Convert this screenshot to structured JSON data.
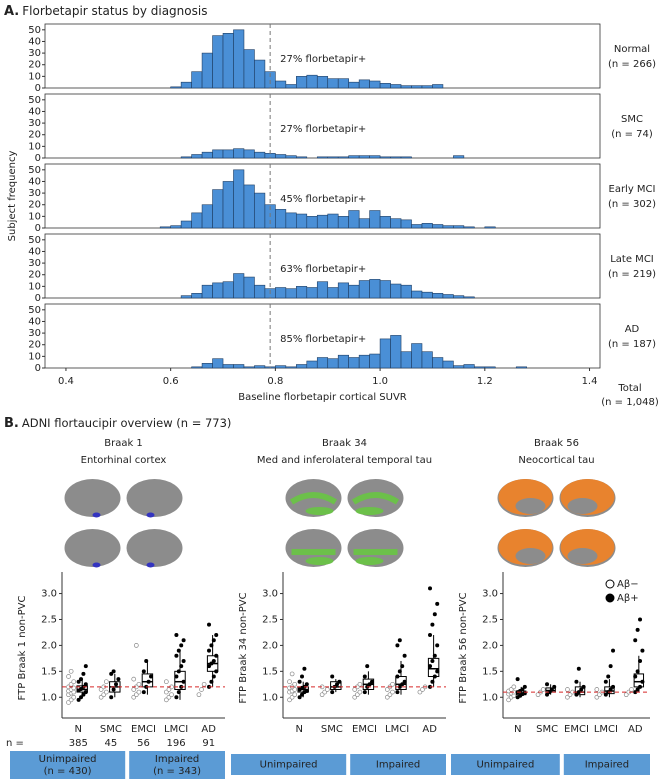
{
  "chart_data": [
    {
      "type": "histogram",
      "panel_letter": "A.",
      "title": "Florbetapir status by diagnosis",
      "xlabel": "Baseline florbetapir cortical SUVR",
      "ylabel": "Subject frequency",
      "xlim": [
        0.36,
        1.42
      ],
      "xticks": [
        0.4,
        0.6,
        0.8,
        {
          "value": 1,
          "label": "1.0"
        },
        1.2,
        1.4
      ],
      "ylim": [
        0,
        55
      ],
      "yticks": [
        0,
        10,
        20,
        30,
        40,
        50
      ],
      "threshold": 0.79,
      "color": "#4a8fd6",
      "bins": [
        0.58,
        0.6,
        0.62,
        0.64,
        0.66,
        0.68,
        0.7,
        0.72,
        0.74,
        0.76,
        0.78,
        0.8,
        0.82,
        0.84,
        0.86,
        0.88,
        0.9,
        0.92,
        0.94,
        0.96,
        0.98,
        1,
        1.02,
        1.04,
        1.06,
        1.08,
        1.1,
        1.12,
        1.14,
        1.16,
        1.18,
        1.2,
        1.22,
        1.24,
        1.26,
        1.28
      ],
      "panels": [
        {
          "name": "Normal",
          "n": "(n = 266)",
          "annotation": "27% florbetapir+",
          "values": [
            0,
            1,
            5,
            14,
            30,
            45,
            47,
            50,
            33,
            24,
            14,
            6,
            3,
            10,
            11,
            10,
            8,
            8,
            5,
            7,
            6,
            4,
            3,
            2,
            2,
            2,
            3,
            0,
            0,
            0,
            0,
            0,
            0,
            0,
            0
          ]
        },
        {
          "name": "SMC",
          "n": "(n = 74)",
          "annotation": "27% florbetapir+",
          "values": [
            0,
            0,
            1,
            3,
            5,
            7,
            7,
            8,
            7,
            5,
            4,
            3,
            2,
            1,
            0,
            1,
            1,
            1,
            2,
            2,
            2,
            1,
            1,
            1,
            0,
            0,
            0,
            0,
            2,
            0,
            0,
            0,
            0,
            0,
            0
          ]
        },
        {
          "name": "Early MCI",
          "n": "(n = 302)",
          "annotation": "45% florbetapir+",
          "values": [
            1,
            2,
            6,
            13,
            20,
            33,
            40,
            50,
            37,
            30,
            20,
            16,
            13,
            12,
            10,
            11,
            12,
            10,
            15,
            8,
            15,
            10,
            8,
            7,
            3,
            4,
            3,
            2,
            2,
            1,
            0,
            1,
            0,
            0,
            0
          ]
        },
        {
          "name": "Late MCI",
          "n": "(n = 219)",
          "annotation": "63% florbetapir+",
          "values": [
            0,
            0,
            2,
            4,
            11,
            13,
            14,
            21,
            18,
            11,
            8,
            9,
            8,
            10,
            9,
            14,
            9,
            13,
            11,
            15,
            16,
            15,
            12,
            11,
            6,
            5,
            4,
            3,
            2,
            1,
            0,
            0,
            0,
            0,
            0
          ]
        },
        {
          "name": "AD",
          "n": "(n = 187)",
          "annotation": "85% florbetapir+",
          "values": [
            0,
            0,
            0,
            1,
            4,
            8,
            3,
            3,
            1,
            2,
            1,
            2,
            1,
            3,
            6,
            9,
            8,
            11,
            9,
            11,
            12,
            25,
            28,
            14,
            21,
            14,
            9,
            6,
            2,
            3,
            1,
            1,
            0,
            0,
            1
          ]
        }
      ],
      "total_label": "Total",
      "total_n": "(n = 1,048)"
    },
    {
      "type": "swarm",
      "panel_letter": "B.",
      "panel_title": "ADNI flortaucipir overview (n = 773)",
      "title": "Braak 1",
      "subtitle": "Entorhinal cortex",
      "ylabel": "FTP Braak 1 non-PVC",
      "region_color": "#3434c0",
      "ylim": [
        0.6,
        3.3
      ],
      "yticks": [
        {
          "value": 1,
          "label": "1.0"
        },
        1.5,
        {
          "value": 2,
          "label": "2.0"
        },
        2.5,
        {
          "value": 3,
          "label": "3.0"
        }
      ],
      "threshold": 1.2,
      "categories": [
        "N",
        "SMC",
        "EMCI",
        "LMCI",
        "AD"
      ],
      "negative": [
        [
          0.9,
          0.95,
          1.0,
          1.05,
          1.08,
          1.1,
          1.12,
          1.15,
          1.18,
          1.2,
          1.25,
          1.3,
          1.4,
          1.5
        ],
        [
          1.0,
          1.05,
          1.1,
          1.15,
          1.2,
          1.3
        ],
        [
          1.0,
          1.05,
          1.1,
          1.15,
          1.2,
          1.25,
          1.35,
          2.0
        ],
        [
          0.95,
          1.0,
          1.05,
          1.1,
          1.15,
          1.2,
          1.3
        ],
        [
          1.05,
          1.15,
          1.25
        ]
      ],
      "positive": [
        [
          0.95,
          1.0,
          1.05,
          1.1,
          1.13,
          1.16,
          1.2,
          1.25,
          1.3,
          1.35,
          1.45,
          1.6
        ],
        [
          1.0,
          1.15,
          1.25,
          1.35,
          1.45,
          1.5
        ],
        [
          1.1,
          1.2,
          1.3,
          1.4,
          1.5,
          1.7
        ],
        [
          1.0,
          1.1,
          1.2,
          1.3,
          1.4,
          1.5,
          1.6,
          1.7,
          1.8,
          1.9,
          2.0,
          2.1,
          2.2
        ],
        [
          1.2,
          1.3,
          1.4,
          1.5,
          1.6,
          1.65,
          1.7,
          1.8,
          1.9,
          2.0,
          2.1,
          2.2,
          2.4
        ]
      ],
      "boxes": [
        [
          1.0,
          1.1,
          1.15,
          1.22,
          1.35
        ],
        [
          1.0,
          1.1,
          1.2,
          1.3,
          1.45
        ],
        [
          1.05,
          1.2,
          1.3,
          1.45,
          1.7
        ],
        [
          0.95,
          1.15,
          1.3,
          1.5,
          1.9
        ],
        [
          1.2,
          1.5,
          1.65,
          1.8,
          2.2
        ]
      ],
      "n_label": "n =",
      "counts": [
        385,
        45,
        56,
        196,
        91
      ],
      "group_color": "#5b9bd5",
      "groups": [
        {
          "label": "Unimpaired",
          "sublabel": "(n = 430)"
        },
        {
          "label": "Impaired",
          "sublabel": "(n = 343)"
        }
      ]
    },
    {
      "type": "swarm",
      "title": "Braak 34",
      "subtitle": "Med and inferolateral temporal tau",
      "ylabel": "FTP Braak 34 non-PVC",
      "region_color": "#6cc04a",
      "ylim": [
        0.6,
        3.3
      ],
      "yticks": [
        {
          "value": 1,
          "label": "1.0"
        },
        1.5,
        {
          "value": 2,
          "label": "2.0"
        },
        2.5,
        {
          "value": 3,
          "label": "3.0"
        }
      ],
      "threshold": 1.2,
      "categories": [
        "N",
        "SMC",
        "EMCI",
        "LMCI",
        "AD"
      ],
      "negative": [
        [
          0.95,
          1.0,
          1.05,
          1.1,
          1.12,
          1.15,
          1.18,
          1.2,
          1.25,
          1.3,
          1.45
        ],
        [
          1.05,
          1.1,
          1.15,
          1.2
        ],
        [
          1.0,
          1.05,
          1.1,
          1.15,
          1.2,
          1.25
        ],
        [
          1.0,
          1.05,
          1.1,
          1.15,
          1.2,
          1.25
        ],
        [
          1.1,
          1.15,
          1.2
        ]
      ],
      "positive": [
        [
          1.0,
          1.05,
          1.1,
          1.12,
          1.15,
          1.18,
          1.2,
          1.25,
          1.3,
          1.4,
          1.55
        ],
        [
          1.1,
          1.2,
          1.25,
          1.3,
          1.4
        ],
        [
          1.1,
          1.2,
          1.25,
          1.3,
          1.4,
          1.6
        ],
        [
          1.1,
          1.2,
          1.25,
          1.3,
          1.4,
          1.5,
          1.6,
          1.8,
          2.0,
          2.1
        ],
        [
          1.2,
          1.3,
          1.4,
          1.5,
          1.6,
          1.7,
          1.8,
          2.0,
          2.2,
          2.4,
          2.6,
          2.8,
          3.1
        ]
      ],
      "boxes": [
        [
          1.0,
          1.1,
          1.15,
          1.2,
          1.3
        ],
        [
          1.1,
          1.15,
          1.2,
          1.3,
          1.35
        ],
        [
          1.05,
          1.15,
          1.25,
          1.35,
          1.5
        ],
        [
          1.05,
          1.15,
          1.25,
          1.4,
          1.7
        ],
        [
          1.2,
          1.4,
          1.55,
          1.75,
          2.2
        ]
      ],
      "group_color": "#5b9bd5",
      "groups": [
        {
          "label": "Unimpaired"
        },
        {
          "label": "Impaired"
        }
      ]
    },
    {
      "type": "swarm",
      "title": "Braak 56",
      "subtitle": "Neocortical tau",
      "ylabel": "FTP Braak 56 non-PVC",
      "region_color": "#e8832e",
      "ylim": [
        0.6,
        3.3
      ],
      "yticks": [
        {
          "value": 1,
          "label": "1.0"
        },
        1.5,
        {
          "value": 2,
          "label": "2.0"
        },
        2.5,
        {
          "value": 3,
          "label": "3.0"
        }
      ],
      "threshold": 1.1,
      "categories": [
        "N",
        "SMC",
        "EMCI",
        "LMCI",
        "AD"
      ],
      "negative": [
        [
          0.95,
          1.0,
          1.03,
          1.06,
          1.08,
          1.1,
          1.12,
          1.15,
          1.2
        ],
        [
          1.05,
          1.1,
          1.15
        ],
        [
          1.0,
          1.05,
          1.1,
          1.15
        ],
        [
          1.0,
          1.05,
          1.1,
          1.15
        ],
        [
          1.05,
          1.1,
          1.15
        ]
      ],
      "positive": [
        [
          1.0,
          1.03,
          1.06,
          1.08,
          1.1,
          1.12,
          1.15,
          1.2,
          1.35
        ],
        [
          1.05,
          1.1,
          1.15,
          1.2,
          1.25
        ],
        [
          1.05,
          1.1,
          1.15,
          1.2,
          1.3,
          1.55
        ],
        [
          1.05,
          1.1,
          1.15,
          1.2,
          1.3,
          1.4,
          1.6,
          1.9
        ],
        [
          1.1,
          1.15,
          1.2,
          1.3,
          1.4,
          1.5,
          1.7,
          1.9,
          2.1,
          2.3,
          2.5
        ]
      ],
      "boxes": [
        [
          1.0,
          1.05,
          1.08,
          1.12,
          1.2
        ],
        [
          1.05,
          1.1,
          1.13,
          1.18,
          1.25
        ],
        [
          1.0,
          1.05,
          1.1,
          1.2,
          1.3
        ],
        [
          1.0,
          1.07,
          1.12,
          1.2,
          1.35
        ],
        [
          1.1,
          1.2,
          1.3,
          1.45,
          1.8
        ]
      ],
      "legend": [
        "Aβ−",
        "Aβ+"
      ],
      "group_color": "#5b9bd5",
      "groups": [
        {
          "label": "Unimpaired"
        },
        {
          "label": "Impaired"
        }
      ]
    }
  ]
}
